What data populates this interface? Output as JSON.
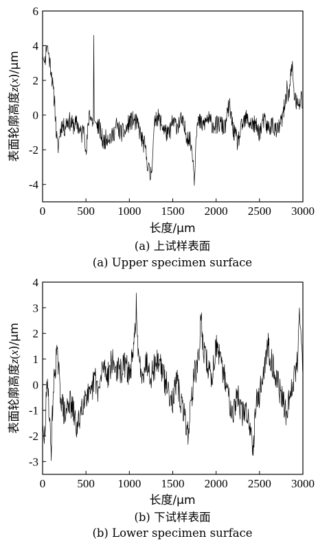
{
  "chart_data": [
    {
      "type": "line",
      "ylabel_prefix": "表面轮廓高度",
      "ylabel_var": "z",
      "ylabel_arg": "x",
      "ylabel_suffix": ")/μm",
      "xlabel": "长度/μm",
      "caption_cn": "(a) 上试样表面",
      "caption_en": "(a) Upper specimen surface",
      "xlim": [
        0,
        3000
      ],
      "ylim": [
        -5,
        6
      ],
      "xticks": [
        0,
        500,
        1000,
        1500,
        2000,
        2500,
        3000
      ],
      "yticks": [
        -4,
        -2,
        0,
        2,
        4,
        6
      ],
      "series": [
        {
          "x": [
            0,
            25,
            50,
            75,
            100,
            125,
            140,
            155,
            175,
            200,
            225,
            250,
            275,
            300,
            350,
            400,
            450,
            480,
            500,
            520,
            540,
            560,
            585,
            590,
            595,
            620,
            650,
            700,
            750,
            800,
            850,
            900,
            950,
            1000,
            1050,
            1100,
            1150,
            1180,
            1200,
            1220,
            1240,
            1260,
            1300,
            1350,
            1400,
            1450,
            1500,
            1550,
            1600,
            1650,
            1700,
            1730,
            1750,
            1770,
            1800,
            1850,
            1900,
            1950,
            2000,
            2050,
            2100,
            2150,
            2200,
            2250,
            2300,
            2350,
            2400,
            2450,
            2500,
            2550,
            2600,
            2650,
            2700,
            2750,
            2780,
            2800,
            2820,
            2840,
            2860,
            2880,
            2900,
            2920,
            2950,
            2980,
            3000
          ],
          "y": [
            3.4,
            3.0,
            4.2,
            3.3,
            2.6,
            1.2,
            0.8,
            -0.8,
            -2.0,
            -1.0,
            -0.5,
            -0.8,
            -0.4,
            -0.3,
            -0.6,
            -0.5,
            -1.2,
            -0.4,
            -2.5,
            -1.0,
            0.3,
            -0.2,
            -0.5,
            4.6,
            -0.3,
            -0.5,
            -0.7,
            -1.6,
            -1.2,
            -1.3,
            -0.6,
            -1.0,
            -1.0,
            -0.4,
            -0.3,
            -0.6,
            -1.5,
            -1.8,
            -2.5,
            -3.0,
            -3.6,
            -2.8,
            0.0,
            -0.3,
            -0.8,
            -1.2,
            -0.4,
            -0.6,
            -0.3,
            -1.0,
            -1.5,
            -2.2,
            -3.8,
            -0.8,
            -0.4,
            -0.6,
            -0.2,
            -0.5,
            -0.6,
            -0.5,
            -0.8,
            0.6,
            -0.9,
            -1.6,
            -0.6,
            -0.2,
            -0.5,
            -0.6,
            -1.0,
            -0.3,
            -0.8,
            -0.5,
            -1.0,
            -0.4,
            0.2,
            0.9,
            1.6,
            1.1,
            2.3,
            2.7,
            1.2,
            0.8,
            0.4,
            1.0,
            0.6
          ]
        }
      ]
    },
    {
      "type": "line",
      "ylabel_prefix": "表面轮廓高度",
      "ylabel_var": "z",
      "ylabel_arg": "x",
      "ylabel_suffix": ")/μm",
      "xlabel": "长度/μm",
      "caption_cn": "(b) 下试样表面",
      "caption_en": "(b) Lower specimen surface",
      "xlim": [
        0,
        3000
      ],
      "ylim": [
        -3.5,
        4
      ],
      "xticks": [
        0,
        500,
        1000,
        1500,
        2000,
        2500,
        3000
      ],
      "yticks": [
        -3,
        -2,
        -1,
        0,
        1,
        2,
        3,
        4
      ],
      "series": [
        {
          "x": [
            0,
            20,
            40,
            60,
            80,
            100,
            120,
            140,
            160,
            180,
            200,
            230,
            260,
            300,
            350,
            400,
            450,
            500,
            550,
            600,
            650,
            700,
            750,
            800,
            850,
            900,
            950,
            1000,
            1050,
            1080,
            1100,
            1150,
            1200,
            1250,
            1300,
            1350,
            1400,
            1450,
            1500,
            1550,
            1600,
            1650,
            1680,
            1700,
            1750,
            1800,
            1830,
            1850,
            1900,
            1950,
            2000,
            2050,
            2100,
            2150,
            2200,
            2250,
            2300,
            2350,
            2400,
            2430,
            2450,
            2500,
            2550,
            2600,
            2650,
            2700,
            2750,
            2800,
            2850,
            2900,
            2940,
            2960,
            2980,
            3000
          ],
          "y": [
            -1.5,
            -2.3,
            -0.8,
            0.3,
            -1.5,
            -2.5,
            -0.5,
            0.5,
            1.2,
            0.8,
            -0.2,
            -0.8,
            -1.3,
            -0.6,
            -1.0,
            -1.8,
            -0.8,
            -0.3,
            -0.6,
            0.3,
            -0.3,
            0.8,
            0.4,
            0.9,
            0.6,
            0.5,
            0.8,
            0.4,
            1.2,
            3.2,
            1.0,
            0.5,
            0.9,
            0.4,
            0.8,
            1.0,
            0.2,
            -0.2,
            -0.6,
            0.1,
            -0.8,
            -1.4,
            -2.0,
            -1.0,
            0.4,
            1.0,
            2.8,
            1.4,
            0.8,
            0.2,
            1.6,
            0.8,
            0.3,
            -0.6,
            -1.0,
            -0.4,
            -1.2,
            -1.0,
            -1.8,
            -2.4,
            -0.8,
            -0.4,
            0.6,
            1.5,
            0.8,
            0.2,
            -0.4,
            -1.1,
            -0.5,
            0.3,
            1.0,
            3.3,
            1.8,
            0.4
          ]
        }
      ]
    }
  ]
}
